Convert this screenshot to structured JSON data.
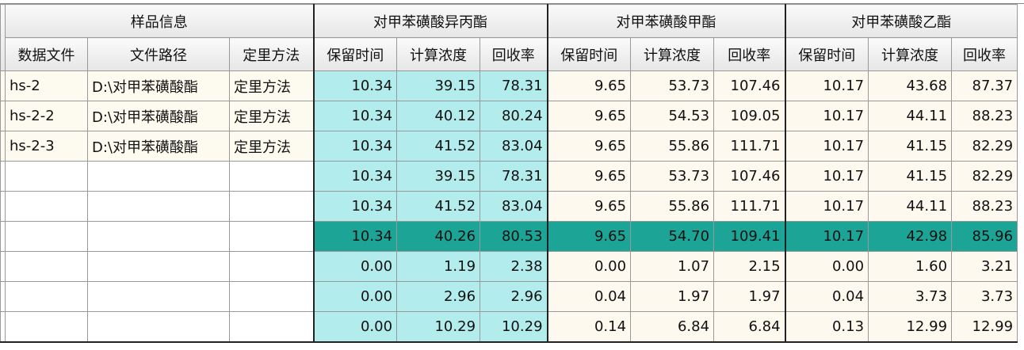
{
  "header": {
    "groups": [
      "样品信息",
      "对甲苯磺酸异丙酯",
      "对甲苯磺酸甲酯",
      "对甲苯磺酸乙酯"
    ],
    "sample_columns": [
      "数据文件",
      "文件路径",
      "定里方法"
    ],
    "group_columns": [
      "保留时间",
      "计算浓度",
      "回收率"
    ]
  },
  "rows": [
    {
      "cells": [
        "hs-2",
        "D:\\对甲苯磺酸酯",
        "定里方法"
      ],
      "values": [
        [
          "10.34",
          "39.15",
          "78.31"
        ],
        [
          "9.65",
          "53.73",
          "107.46"
        ],
        [
          "10.17",
          "43.68",
          "87.37"
        ]
      ]
    },
    {
      "cells": [
        "hs-2-2",
        "D:\\对甲苯磺酸酯",
        "定里方法"
      ],
      "values": [
        [
          "10.34",
          "40.12",
          "80.24"
        ],
        [
          "9.65",
          "54.53",
          "109.05"
        ],
        [
          "10.17",
          "44.11",
          "88.23"
        ]
      ]
    },
    {
      "cells": [
        "hs-2-3",
        "D:\\对甲苯磺酸酯",
        "定里方法"
      ],
      "values": [
        [
          "10.34",
          "41.52",
          "83.04"
        ],
        [
          "9.65",
          "55.86",
          "111.71"
        ],
        [
          "10.17",
          "41.15",
          "82.29"
        ]
      ]
    },
    {
      "values": [
        [
          "10.34",
          "39.15",
          "78.31"
        ],
        [
          "9.65",
          "53.73",
          "107.46"
        ],
        [
          "10.17",
          "41.15",
          "82.29"
        ]
      ]
    },
    {
      "values": [
        [
          "10.34",
          "41.52",
          "83.04"
        ],
        [
          "9.65",
          "55.86",
          "111.71"
        ],
        [
          "10.17",
          "44.11",
          "88.23"
        ]
      ]
    },
    {
      "values": [
        [
          "10.34",
          "40.26",
          "80.53"
        ],
        [
          "9.65",
          "54.70",
          "109.41"
        ],
        [
          "10.17",
          "42.98",
          "85.96"
        ]
      ]
    },
    {
      "values": [
        [
          "0.00",
          "1.19",
          "2.38"
        ],
        [
          "0.00",
          "1.07",
          "2.15"
        ],
        [
          "0.00",
          "1.60",
          "3.21"
        ]
      ]
    },
    {
      "values": [
        [
          "0.00",
          "2.96",
          "2.96"
        ],
        [
          "0.04",
          "1.97",
          "1.97"
        ],
        [
          "0.04",
          "3.73",
          "3.73"
        ]
      ]
    },
    {
      "values": [
        [
          "0.00",
          "10.29",
          "10.29"
        ],
        [
          "0.14",
          "6.84",
          "6.84"
        ],
        [
          "0.13",
          "12.99",
          "12.99"
        ]
      ]
    }
  ]
}
